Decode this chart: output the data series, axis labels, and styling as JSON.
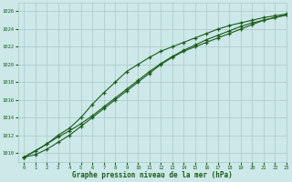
{
  "title": "Graphe pression niveau de la mer (hPa)",
  "bg_color": "#cce8e8",
  "grid_color": "#aac8c8",
  "line_color": "#1a5c1a",
  "xlim": [
    -0.5,
    23
  ],
  "ylim": [
    1009.0,
    1027.0
  ],
  "yticks": [
    1010,
    1012,
    1014,
    1016,
    1018,
    1020,
    1022,
    1024,
    1026
  ],
  "xticks": [
    0,
    1,
    2,
    3,
    4,
    5,
    6,
    7,
    8,
    9,
    10,
    11,
    12,
    13,
    14,
    15,
    16,
    17,
    18,
    19,
    20,
    21,
    22,
    23
  ],
  "line1_x": [
    0,
    1,
    2,
    3,
    4,
    5,
    6,
    7,
    8,
    9,
    10,
    11,
    12,
    13,
    14,
    15,
    16,
    17,
    18,
    19,
    20,
    21,
    22,
    23
  ],
  "line1_y": [
    1009.5,
    1009.8,
    1010.4,
    1011.2,
    1012.0,
    1013.0,
    1014.0,
    1015.0,
    1016.0,
    1017.0,
    1018.0,
    1019.0,
    1020.0,
    1020.8,
    1021.5,
    1022.0,
    1022.5,
    1023.0,
    1023.5,
    1024.0,
    1024.5,
    1025.0,
    1025.3,
    1025.6
  ],
  "line2_x": [
    0,
    2,
    3,
    4,
    5,
    6,
    7,
    8,
    9,
    10,
    11,
    12,
    13,
    14,
    15,
    16,
    17,
    18,
    19,
    20,
    21,
    22,
    23
  ],
  "line2_y": [
    1009.5,
    1011.0,
    1012.0,
    1012.8,
    1014.0,
    1015.5,
    1016.8,
    1018.0,
    1019.2,
    1020.0,
    1020.8,
    1021.5,
    1022.0,
    1022.5,
    1023.0,
    1023.5,
    1024.0,
    1024.4,
    1024.7,
    1025.0,
    1025.3,
    1025.5,
    1025.7
  ],
  "line3_x": [
    0,
    1,
    2,
    3,
    4,
    5,
    6,
    7,
    8,
    9,
    10,
    11,
    12,
    13,
    14,
    15,
    16,
    17,
    18,
    19,
    20,
    21,
    22,
    23
  ],
  "line3_y": [
    1009.5,
    1010.2,
    1011.0,
    1011.8,
    1012.5,
    1013.3,
    1014.2,
    1015.2,
    1016.2,
    1017.2,
    1018.2,
    1019.2,
    1020.1,
    1020.9,
    1021.6,
    1022.2,
    1022.8,
    1023.3,
    1023.8,
    1024.3,
    1024.7,
    1025.0,
    1025.3,
    1025.6
  ]
}
